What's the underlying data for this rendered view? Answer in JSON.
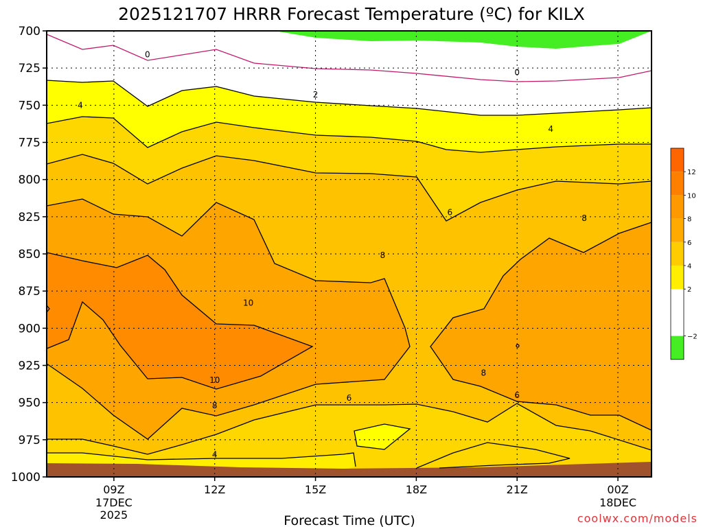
{
  "chart_data": {
    "type": "contour",
    "title": "2025121707 HRRR Forecast Temperature (ºC) for KILX",
    "xlabel": "Forecast Time (UTC)",
    "ylabel": "",
    "x_ticks": [
      {
        "label": "09Z",
        "sub": [
          "17DEC",
          "2025"
        ],
        "hour": 9
      },
      {
        "label": "12Z",
        "sub": [],
        "hour": 12
      },
      {
        "label": "15Z",
        "sub": [],
        "hour": 15
      },
      {
        "label": "18Z",
        "sub": [],
        "hour": 18
      },
      {
        "label": "21Z",
        "sub": [],
        "hour": 21
      },
      {
        "label": "00Z",
        "sub": [
          "18DEC"
        ],
        "hour": 24
      }
    ],
    "xlim": [
      7,
      25
    ],
    "y_ticks": [
      700,
      725,
      750,
      775,
      800,
      825,
      850,
      875,
      900,
      925,
      950,
      975,
      1000
    ],
    "ylim": [
      700,
      1000
    ],
    "y_axis": "pressure (hPa), inverted",
    "grid": "dotted",
    "contour_levels": [
      -2,
      0,
      2,
      4,
      6,
      8,
      10,
      12
    ],
    "contour_labels": [
      {
        "text": "0",
        "hour": 10.0,
        "p": 716
      },
      {
        "text": "0",
        "hour": 21.0,
        "p": 728
      },
      {
        "text": "2",
        "hour": 15.0,
        "p": 743
      },
      {
        "text": "4",
        "hour": 8.0,
        "p": 750
      },
      {
        "text": "4",
        "hour": 22.0,
        "p": 766
      },
      {
        "text": "6",
        "hour": 19.0,
        "p": 822
      },
      {
        "text": "8",
        "hour": 23.0,
        "p": 826
      },
      {
        "text": "8",
        "hour": 17.0,
        "p": 851
      },
      {
        "text": "10",
        "hour": 13.0,
        "p": 883
      },
      {
        "text": "10",
        "hour": 12.0,
        "p": 935
      },
      {
        "text": "8",
        "hour": 12.0,
        "p": 952
      },
      {
        "text": "6",
        "hour": 16.0,
        "p": 947
      },
      {
        "text": "8",
        "hour": 20.0,
        "p": 930
      },
      {
        "text": "6",
        "hour": 21.0,
        "p": 945
      },
      {
        "text": "4",
        "hour": 12.0,
        "p": 985
      }
    ],
    "colorbar": {
      "ticks": [
        "12",
        "10",
        "8",
        "6",
        "4",
        "2",
        "−2"
      ],
      "bins": [
        {
          "range": "12–14",
          "color": "#ff6600"
        },
        {
          "range": "10–12",
          "color": "#ff8000"
        },
        {
          "range": "8–10",
          "color": "#ff9900"
        },
        {
          "range": "6–8",
          "color": "#ffaa00"
        },
        {
          "range": "4–6",
          "color": "#ffcc00"
        },
        {
          "range": "2–4",
          "color": "#ffee00"
        },
        {
          "range": "0–2",
          "color": "#ffffff"
        },
        {
          "range": "-2–0",
          "color": "#ffffff"
        },
        {
          "range": "<-2",
          "color": "#44ee22"
        }
      ]
    },
    "colors": {
      "ground": "#a0522d",
      "freezing_line": "#c0186b",
      "contour_line": "#000000"
    }
  },
  "watermark": "coolwx.com/models"
}
